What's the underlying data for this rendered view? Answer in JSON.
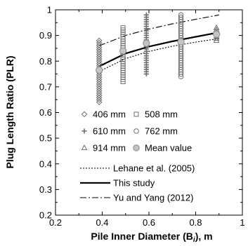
{
  "chart_data": {
    "type": "scatter",
    "title": "",
    "xlabel": "Pile Inner Diameter (B",
    "xlabel_subscript": "i",
    "xlabel_suffix": "), m",
    "ylabel": "Plug Length Ratio (PLR)",
    "xlim": [
      0.2,
      1.0
    ],
    "ylim": [
      0.2,
      1.0
    ],
    "xticks": [
      0.2,
      0.4,
      0.6,
      0.8,
      1.0
    ],
    "yticks": [
      0.2,
      0.3,
      0.4,
      0.5,
      0.6,
      0.7,
      0.8,
      0.9,
      1.0
    ],
    "xtick_labels": [
      "0.2",
      "0.4",
      "0.6",
      "0.8",
      "1"
    ],
    "ytick_labels": [
      "0.2",
      "0.3",
      "0.4",
      "0.5",
      "0.6",
      "0.7",
      "0.8",
      "0.9",
      "1"
    ],
    "grid": false,
    "legend_position": "bottom-center",
    "colors": {
      "markers": "#6f6f6f",
      "mean_fill": "#c4c4c4",
      "lines": "#000000"
    },
    "series": [
      {
        "name": "406 mm",
        "marker": "diamond",
        "x": 0.387,
        "y_min": 0.64,
        "y_max": 0.88
      },
      {
        "name": "508 mm",
        "marker": "square",
        "x": 0.489,
        "y_min": 0.72,
        "y_max": 0.93
      },
      {
        "name": "610 mm",
        "marker": "plus",
        "x": 0.589,
        "y_min": 0.75,
        "y_max": 0.98
      },
      {
        "name": "762 mm",
        "marker": "circle",
        "x": 0.737,
        "y_min": 0.74,
        "y_max": 0.98
      },
      {
        "name": "914 mm",
        "marker": "triangle",
        "x": 0.889,
        "y_min": 0.88,
        "y_max": 0.93
      }
    ],
    "mean_values": {
      "name": "Mean value",
      "points": [
        {
          "x": 0.387,
          "y": 0.765
        },
        {
          "x": 0.489,
          "y": 0.84
        },
        {
          "x": 0.589,
          "y": 0.87
        },
        {
          "x": 0.737,
          "y": 0.875
        },
        {
          "x": 0.889,
          "y": 0.905
        }
      ]
    },
    "lines": [
      {
        "name": "Lehane et al. (2005)",
        "style": "dotted",
        "x": [
          0.387,
          0.5,
          0.6,
          0.7,
          0.8,
          0.9
        ],
        "y": [
          0.76,
          0.81,
          0.838,
          0.858,
          0.874,
          0.888
        ]
      },
      {
        "name": "This study",
        "style": "solid",
        "x": [
          0.387,
          0.5,
          0.6,
          0.7,
          0.8,
          0.9
        ],
        "y": [
          0.78,
          0.83,
          0.857,
          0.877,
          0.895,
          0.912
        ]
      },
      {
        "name": "Yu and Yang (2012)",
        "style": "dashdot",
        "x": [
          0.387,
          0.5,
          0.6,
          0.7,
          0.8,
          0.9
        ],
        "y": [
          0.86,
          0.9,
          0.925,
          0.945,
          0.963,
          0.98
        ]
      }
    ]
  }
}
